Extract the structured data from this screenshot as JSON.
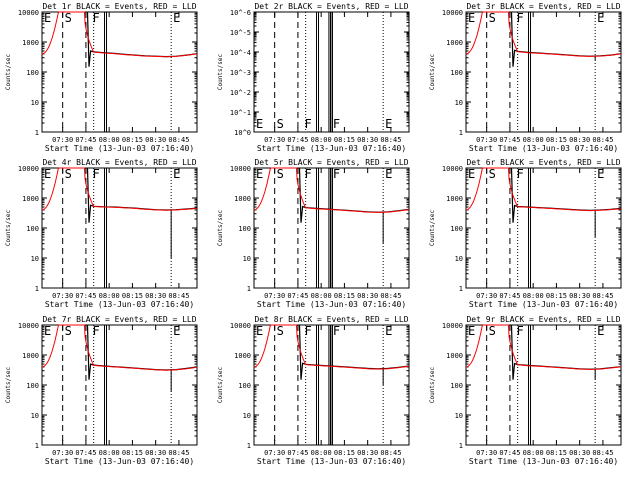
{
  "chart_data": [
    {
      "type": "line",
      "title": "Det 1r BLACK = Events, RED = LLD",
      "ylabel": "Counts/sec",
      "xlabel": "Start Time (13-Jun-03 07:16:40)",
      "x_ticks": [
        "07:30",
        "07:45",
        "08:00",
        "08:15",
        "08:30",
        "08:45"
      ],
      "y_ticks": [
        "1",
        "10",
        "100",
        "1000",
        "10000"
      ],
      "scale": "log",
      "ylim": [
        1,
        10000
      ],
      "markers": [
        "E",
        "S",
        "F",
        "E"
      ],
      "series": [
        {
          "color": "#000000"
        },
        {
          "color": "#ff0000"
        }
      ],
      "events": {
        "dashed": [
          "07:30",
          "07:45"
        ],
        "dotted": [
          "07:50",
          "08:40"
        ],
        "solid": [
          "07:57"
        ]
      },
      "values": [
        [
          460,
          430,
          410,
          380,
          360,
          340,
          330,
          320,
          330,
          360,
          400
        ]
      ],
      "dip": {
        "t": "08:40",
        "to": 300
      }
    },
    {
      "type": "line",
      "title": "Det 2r BLACK = Events, RED = LLD",
      "ylabel": "Counts/sec",
      "xlabel": "Start Time (13-Jun-03 07:16:40)",
      "x_ticks": [
        "07:30",
        "07:45",
        "08:00",
        "08:15",
        "08:30",
        "08:45"
      ],
      "y_ticks": [
        "10^0",
        "10^-1",
        "10^-2",
        "10^-3",
        "10^-4",
        "10^-5",
        "10^-6"
      ],
      "scale": "log",
      "ylim": [
        1e-06,
        1
      ],
      "markers": [
        "E",
        "S",
        "F",
        "F",
        "E"
      ],
      "series": [],
      "events": {
        "dashed": [
          "07:30",
          "07:45"
        ],
        "dotted": [
          "07:50",
          "08:40"
        ],
        "solid": [
          "07:57",
          "08:05",
          "08:06"
        ]
      }
    },
    {
      "type": "line",
      "title": "Det 3r BLACK = Events, RED = LLD",
      "ylabel": "Counts/sec",
      "xlabel": "Start Time (13-Jun-03 07:16:40)",
      "x_ticks": [
        "07:30",
        "07:45",
        "08:00",
        "08:15",
        "08:30",
        "08:45"
      ],
      "y_ticks": [
        "1",
        "10",
        "100",
        "1000",
        "10000"
      ],
      "scale": "log",
      "ylim": [
        1,
        10000
      ],
      "markers": [
        "E",
        "S",
        "F",
        "E"
      ],
      "series": [
        {
          "color": "#000000"
        },
        {
          "color": "#ff0000"
        }
      ],
      "events": {
        "dashed": [
          "07:30",
          "07:45"
        ],
        "dotted": [
          "07:50",
          "08:40"
        ],
        "solid": [
          "07:57"
        ]
      },
      "values": [
        [
          480,
          440,
          420,
          400,
          380,
          360,
          340,
          330,
          340,
          360,
          400
        ]
      ],
      "dip": {
        "t": "08:40",
        "to": 250
      }
    },
    {
      "type": "line",
      "title": "Det 4r BLACK = Events, RED = LLD",
      "ylabel": "Counts/sec",
      "xlabel": "Start Time (13-Jun-03 07:16:40)",
      "x_ticks": [
        "07:30",
        "07:45",
        "08:00",
        "08:15",
        "08:30",
        "08:45"
      ],
      "y_ticks": [
        "1",
        "10",
        "100",
        "1000",
        "10000"
      ],
      "scale": "log",
      "ylim": [
        1,
        10000
      ],
      "markers": [
        "E",
        "S",
        "F",
        "E"
      ],
      "series": [
        {
          "color": "#000000"
        },
        {
          "color": "#ff0000"
        }
      ],
      "events": {
        "dashed": [
          "07:30",
          "07:45"
        ],
        "dotted": [
          "07:50",
          "08:40"
        ],
        "solid": [
          "07:57"
        ]
      },
      "values": [
        [
          520,
          500,
          490,
          470,
          450,
          420,
          400,
          390,
          400,
          420,
          450
        ]
      ],
      "dip": {
        "t": "08:40",
        "to": 10
      }
    },
    {
      "type": "line",
      "title": "Det 5r BLACK = Events, RED = LLD",
      "ylabel": "Counts/sec",
      "xlabel": "Start Time (13-Jun-03 07:16:40)",
      "x_ticks": [
        "07:30",
        "07:45",
        "08:00",
        "08:15",
        "08:30",
        "08:45"
      ],
      "y_ticks": [
        "1",
        "10",
        "100",
        "1000",
        "10000"
      ],
      "scale": "log",
      "ylim": [
        1,
        10000
      ],
      "markers": [
        "E",
        "S",
        "F",
        "F",
        "E"
      ],
      "series": [
        {
          "color": "#000000"
        },
        {
          "color": "#ff0000"
        }
      ],
      "events": {
        "dashed": [
          "07:30",
          "07:45"
        ],
        "dotted": [
          "07:50",
          "08:40"
        ],
        "solid": [
          "07:57",
          "08:05",
          "08:06"
        ]
      },
      "values": [
        [
          470,
          440,
          420,
          400,
          380,
          360,
          340,
          330,
          340,
          370,
          410
        ]
      ],
      "dip": {
        "t": "08:40",
        "to": 30
      }
    },
    {
      "type": "line",
      "title": "Det 6r BLACK = Events, RED = LLD",
      "ylabel": "Counts/sec",
      "xlabel": "Start Time (13-Jun-03 07:16:40)",
      "x_ticks": [
        "07:30",
        "07:45",
        "08:00",
        "08:15",
        "08:30",
        "08:45"
      ],
      "y_ticks": [
        "1",
        "10",
        "100",
        "1000",
        "10000"
      ],
      "scale": "log",
      "ylim": [
        1,
        10000
      ],
      "markers": [
        "E",
        "S",
        "F",
        "E"
      ],
      "series": [
        {
          "color": "#000000"
        },
        {
          "color": "#ff0000"
        }
      ],
      "events": {
        "dashed": [
          "07:30",
          "07:45"
        ],
        "dotted": [
          "07:50",
          "08:40"
        ],
        "solid": [
          "07:57"
        ]
      },
      "values": [
        [
          510,
          490,
          470,
          450,
          430,
          410,
          390,
          380,
          390,
          410,
          440
        ]
      ],
      "dip": {
        "t": "08:40",
        "to": 50
      }
    },
    {
      "type": "line",
      "title": "Det 7r BLACK = Events, RED = LLD",
      "ylabel": "Counts/sec",
      "xlabel": "Start Time (13-Jun-03 07:16:40)",
      "x_ticks": [
        "07:30",
        "07:45",
        "08:00",
        "08:15",
        "08:30",
        "08:45"
      ],
      "y_ticks": [
        "1",
        "10",
        "100",
        "1000",
        "10000"
      ],
      "scale": "log",
      "ylim": [
        1,
        10000
      ],
      "markers": [
        "E",
        "S",
        "F",
        "E"
      ],
      "series": [
        {
          "color": "#000000"
        },
        {
          "color": "#ff0000"
        }
      ],
      "events": {
        "dashed": [
          "07:30",
          "07:45"
        ],
        "dotted": [
          "07:50",
          "08:40"
        ],
        "solid": [
          "07:57"
        ]
      },
      "values": [
        [
          450,
          420,
          400,
          380,
          360,
          340,
          320,
          310,
          320,
          350,
          390
        ]
      ],
      "dip": {
        "t": "08:40",
        "to": 60
      }
    },
    {
      "type": "line",
      "title": "Det 8r BLACK = Events, RED = LLD",
      "ylabel": "Counts/sec",
      "xlabel": "Start Time (13-Jun-03 07:16:40)",
      "x_ticks": [
        "07:30",
        "07:45",
        "08:00",
        "08:15",
        "08:30",
        "08:45"
      ],
      "y_ticks": [
        "1",
        "10",
        "100",
        "1000",
        "10000"
      ],
      "scale": "log",
      "ylim": [
        1,
        10000
      ],
      "markers": [
        "E",
        "S",
        "F",
        "F",
        "E"
      ],
      "series": [
        {
          "color": "#000000"
        },
        {
          "color": "#ff0000"
        }
      ],
      "events": {
        "dashed": [
          "07:30",
          "07:45"
        ],
        "dotted": [
          "07:50",
          "08:40"
        ],
        "solid": [
          "07:57",
          "08:05",
          "08:06"
        ]
      },
      "values": [
        [
          480,
          450,
          430,
          410,
          390,
          370,
          350,
          340,
          350,
          380,
          420
        ]
      ],
      "dip": {
        "t": "08:40",
        "to": 100
      }
    },
    {
      "type": "line",
      "title": "Det 9r BLACK = Events, RED = LLD",
      "ylabel": "Counts/sec",
      "xlabel": "Start Time (13-Jun-03 07:16:40)",
      "x_ticks": [
        "07:30",
        "07:45",
        "08:00",
        "08:15",
        "08:30",
        "08:45"
      ],
      "y_ticks": [
        "1",
        "10",
        "100",
        "1000",
        "10000"
      ],
      "scale": "log",
      "ylim": [
        1,
        10000
      ],
      "markers": [
        "E",
        "S",
        "F",
        "E"
      ],
      "series": [
        {
          "color": "#000000"
        },
        {
          "color": "#ff0000"
        }
      ],
      "events": {
        "dashed": [
          "07:30",
          "07:45"
        ],
        "dotted": [
          "07:50",
          "08:40"
        ],
        "solid": [
          "07:57"
        ]
      },
      "values": [
        [
          470,
          440,
          420,
          400,
          380,
          360,
          340,
          330,
          340,
          370,
          400
        ]
      ],
      "dip": {
        "t": "08:40",
        "to": 150
      }
    }
  ]
}
